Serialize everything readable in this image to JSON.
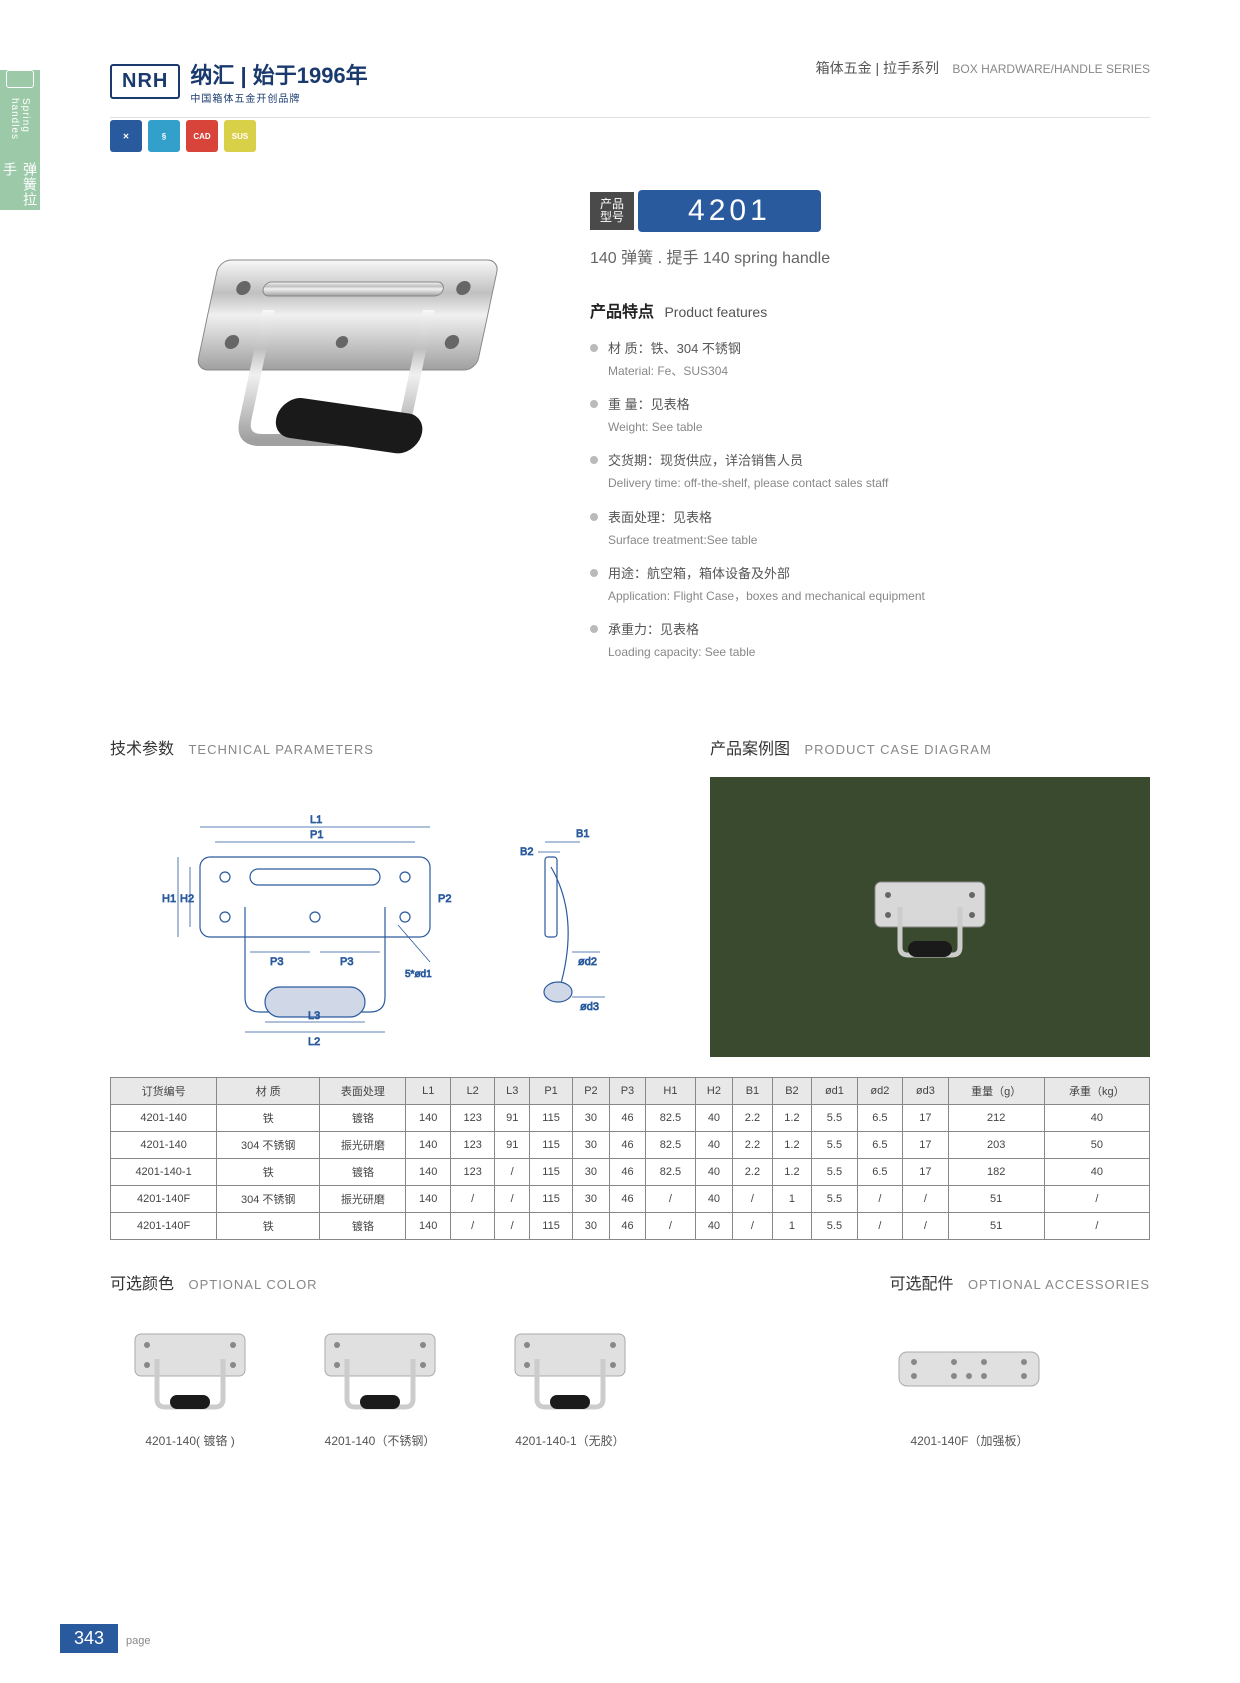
{
  "sideTab": {
    "cn": "弹簧拉手",
    "en": "Spring handles"
  },
  "logo": {
    "mark": "NRH",
    "cn": "纳汇 | 始于1996年",
    "sub": "中国箱体五金开创品牌"
  },
  "headerRight": {
    "cn": "箱体五金 | 拉手系列",
    "en": "BOX HARDWARE/HANDLE SERIES"
  },
  "iconBadges": [
    {
      "bg": "#2a5a9e",
      "txt": "✕"
    },
    {
      "bg": "#33a0cc",
      "txt": "§"
    },
    {
      "bg": "#d9443a",
      "txt": "CAD"
    },
    {
      "bg": "#d9d04a",
      "txt": "SUS"
    }
  ],
  "product": {
    "badgeLabel": "产品\n型号",
    "number": "4201",
    "name": "140 弹簧 . 提手  140 spring handle",
    "featTitleCn": "产品特点",
    "featTitleEn": "Product features",
    "features": [
      {
        "cn": "材 质：铁、304 不锈钢",
        "en": "Material: Fe、SUS304"
      },
      {
        "cn": "重 量：见表格",
        "en": "Weight: See table"
      },
      {
        "cn": "交货期：现货供应，详洽销售人员",
        "en": "Delivery time: off-the-shelf, please contact sales staff"
      },
      {
        "cn": "表面处理：见表格",
        "en": "Surface treatment:See table"
      },
      {
        "cn": "用途：航空箱，箱体设备及外部",
        "en": "Application: Flight Case，boxes and mechanical equipment"
      },
      {
        "cn": "承重力：见表格",
        "en": "Loading capacity: See table"
      }
    ]
  },
  "sections": {
    "techCn": "技术参数",
    "techEn": "TECHNICAL PARAMETERS",
    "caseCn": "产品案例图",
    "caseEn": "PRODUCT CASE DIAGRAM",
    "colorCn": "可选颜色",
    "colorEn": "OPTIONAL COLOR",
    "accCn": "可选配件",
    "accEn": "OPTIONAL ACCESSORIES"
  },
  "diagram": {
    "labels": [
      "L1",
      "P1",
      "H2",
      "H1",
      "P3",
      "P3",
      "L3",
      "L2",
      "P2",
      "5*ød1",
      "B1",
      "B2",
      "ød2",
      "ød3"
    ]
  },
  "table": {
    "columns": [
      "订货编号",
      "材  质",
      "表面处理",
      "L1",
      "L2",
      "L3",
      "P1",
      "P2",
      "P3",
      "H1",
      "H2",
      "B1",
      "B2",
      "ød1",
      "ød2",
      "ød3",
      "重量（g）",
      "承重（kg）"
    ],
    "rows": [
      [
        "4201-140",
        "铁",
        "镀铬",
        "140",
        "123",
        "91",
        "115",
        "30",
        "46",
        "82.5",
        "40",
        "2.2",
        "1.2",
        "5.5",
        "6.5",
        "17",
        "212",
        "40"
      ],
      [
        "4201-140",
        "304 不锈钢",
        "振光研磨",
        "140",
        "123",
        "91",
        "115",
        "30",
        "46",
        "82.5",
        "40",
        "2.2",
        "1.2",
        "5.5",
        "6.5",
        "17",
        "203",
        "50"
      ],
      [
        "4201-140-1",
        "铁",
        "镀铬",
        "140",
        "123",
        "/",
        "115",
        "30",
        "46",
        "82.5",
        "40",
        "2.2",
        "1.2",
        "5.5",
        "6.5",
        "17",
        "182",
        "40"
      ],
      [
        "4201-140F",
        "304 不锈钢",
        "振光研磨",
        "140",
        "/",
        "/",
        "115",
        "30",
        "46",
        "/",
        "40",
        "/",
        "1",
        "5.5",
        "/",
        "/",
        "51",
        "/"
      ],
      [
        "4201-140F",
        "铁",
        "镀铬",
        "140",
        "/",
        "/",
        "115",
        "30",
        "46",
        "/",
        "40",
        "/",
        "1",
        "5.5",
        "/",
        "/",
        "51",
        "/"
      ]
    ]
  },
  "colorOptions": [
    "4201-140( 镀铬 )",
    "4201-140（不锈钢）",
    "4201-140-1（无胶）"
  ],
  "accessory": "4201-140F（加强板）",
  "pageNum": "343",
  "pageLabel": "page"
}
